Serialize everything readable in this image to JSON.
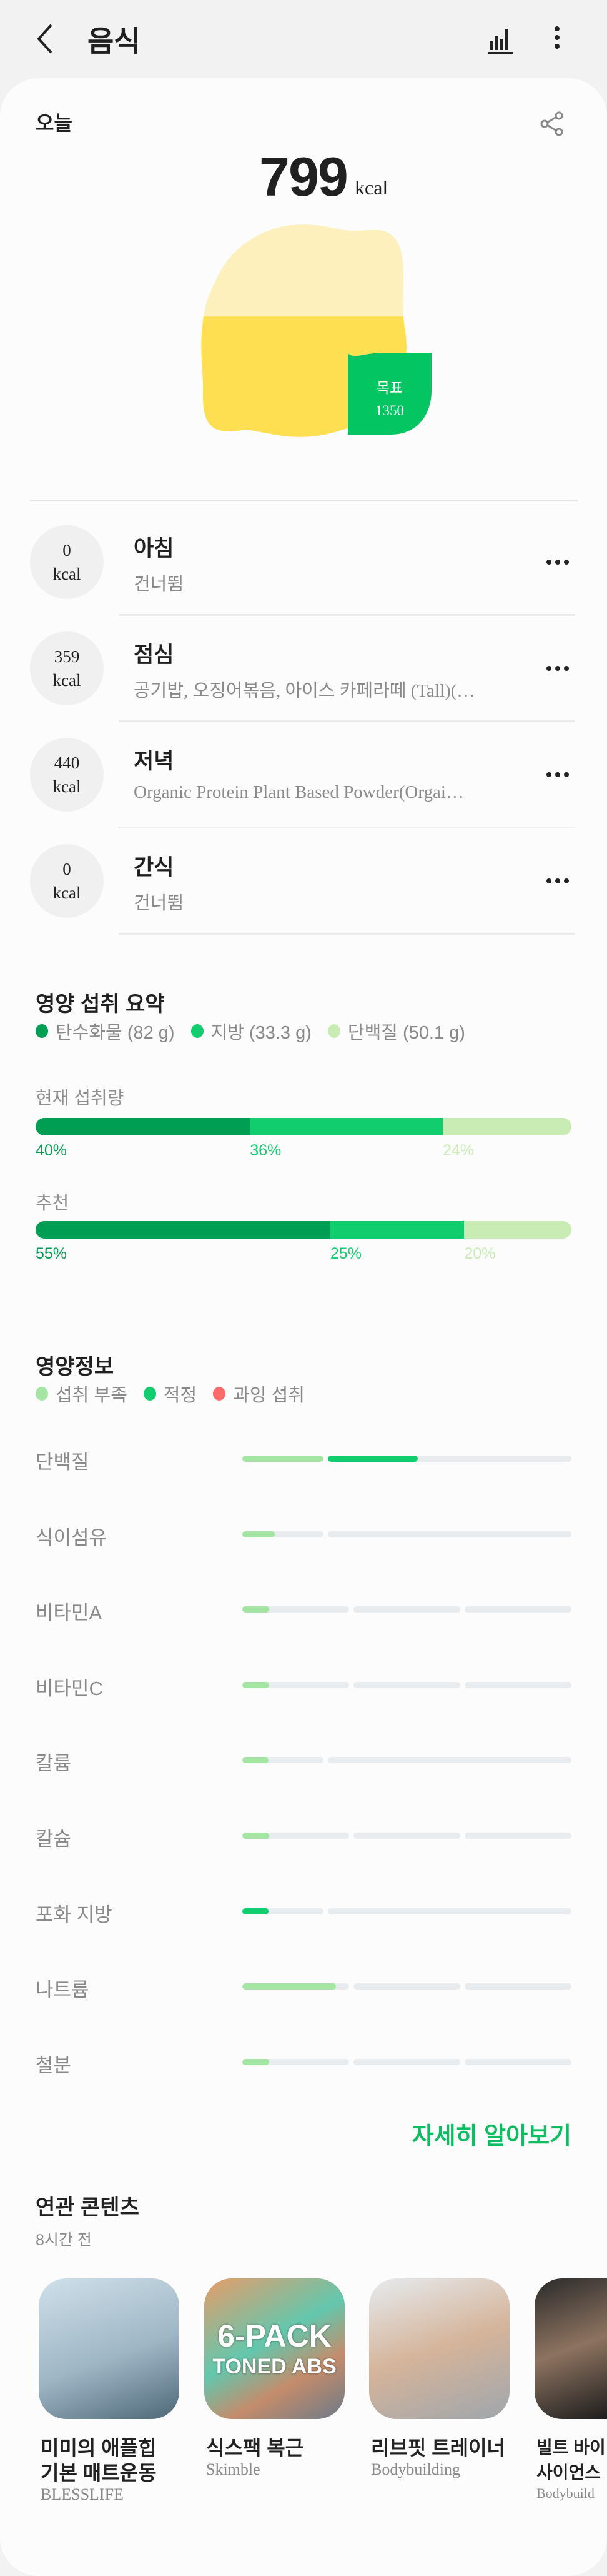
{
  "header": {
    "title": "음식",
    "back_icon": "chevron-left-icon",
    "chart_icon": "bar-chart-icon",
    "more_icon": "more-vertical-icon"
  },
  "today": {
    "label": "오늘",
    "calories": "799",
    "unit": "kcal",
    "goal_label": "목표",
    "goal_value": "1350",
    "intake_fraction": 0.59,
    "share_icon": "share-icon"
  },
  "meals": [
    {
      "kcal": "0",
      "unit": "kcal",
      "name": "아침",
      "detail": "건너뜀"
    },
    {
      "kcal": "359",
      "unit": "kcal",
      "name": "점심",
      "detail": "공기밥, 오징어볶음, 아이스 카페라떼 (Tall)(…"
    },
    {
      "kcal": "440",
      "unit": "kcal",
      "name": "저녁",
      "detail": "Organic Protein Plant Based Powder(Orgai…"
    },
    {
      "kcal": "0",
      "unit": "kcal",
      "name": "간식",
      "detail": "건너뜀"
    }
  ],
  "summary": {
    "title": "영양 섭취 요약",
    "legend": [
      {
        "label": "탄수화물 (82 g)",
        "color": "#009e52"
      },
      {
        "label": "지방 (33.3 g)",
        "color": "#12cd6e"
      },
      {
        "label": "단백질 (50.1 g)",
        "color": "#c8ecb3"
      }
    ],
    "current": {
      "label": "현재 섭취량",
      "values": [
        40,
        36,
        24
      ],
      "labels": [
        "40%",
        "36%",
        "24%"
      ]
    },
    "recommended": {
      "label": "추천",
      "values": [
        55,
        25,
        20
      ],
      "labels": [
        "55%",
        "25%",
        "20%"
      ]
    }
  },
  "nutrition": {
    "title": "영양정보",
    "legend": [
      {
        "label": "섭취 부족",
        "color": "#a5e5a4"
      },
      {
        "label": "적정",
        "color": "#12cd6e"
      },
      {
        "label": "과잉 섭취",
        "color": "#ff6b6b"
      }
    ],
    "rows": [
      {
        "name": "단백질",
        "segments": [
          {
            "fill": 1,
            "color": "#a5e5a4"
          },
          {
            "fill": 0.37,
            "color": "#12cd6e"
          }
        ]
      },
      {
        "name": "식이섬유",
        "segments": [
          {
            "fill": 0.4,
            "color": "#a5e5a4"
          },
          {
            "fill": 0,
            "color": "#12cd6e"
          }
        ]
      },
      {
        "name": "비타민A",
        "segments": [
          {
            "fill": 0.25,
            "color": "#a5e5a4"
          },
          {
            "fill": 0
          },
          {
            "fill": 0
          }
        ]
      },
      {
        "name": "비타민C",
        "segments": [
          {
            "fill": 0.25,
            "color": "#a5e5a4"
          },
          {
            "fill": 0
          },
          {
            "fill": 0
          }
        ]
      },
      {
        "name": "칼륨",
        "segments": [
          {
            "fill": 0.32,
            "color": "#a5e5a4"
          },
          {
            "fill": 0
          }
        ]
      },
      {
        "name": "칼슘",
        "segments": [
          {
            "fill": 0.25,
            "color": "#a5e5a4"
          },
          {
            "fill": 0
          },
          {
            "fill": 0
          }
        ]
      },
      {
        "name": "포화 지방",
        "segments": [
          {
            "fill": 0.32,
            "color": "#12cd6e"
          },
          {
            "fill": 0
          }
        ]
      },
      {
        "name": "나트륨",
        "segments": [
          {
            "fill": 0.88,
            "color": "#a5e5a4"
          },
          {
            "fill": 0
          },
          {
            "fill": 0
          }
        ]
      },
      {
        "name": "철분",
        "segments": [
          {
            "fill": 0.25,
            "color": "#a5e5a4"
          },
          {
            "fill": 0
          },
          {
            "fill": 0
          }
        ]
      }
    ],
    "more_link": "자세히 알아보기"
  },
  "related": {
    "title": "연관 콘텐츠",
    "time": "8시간 전",
    "items": [
      {
        "title1": "미미의 애플힙",
        "title2": "기본 매트운동",
        "source": "BLESSLIFE"
      },
      {
        "title1": "식스팩 복근",
        "title2": "",
        "source": "Skimble",
        "image_text1": "6-PACK",
        "image_text2": "TONED ABS"
      },
      {
        "title1": "리브핏 트레이너",
        "title2": "",
        "source": "Bodybuilding"
      },
      {
        "title1": "빌트 바이",
        "title2": "사이언스",
        "source": "Bodybuild"
      }
    ]
  }
}
